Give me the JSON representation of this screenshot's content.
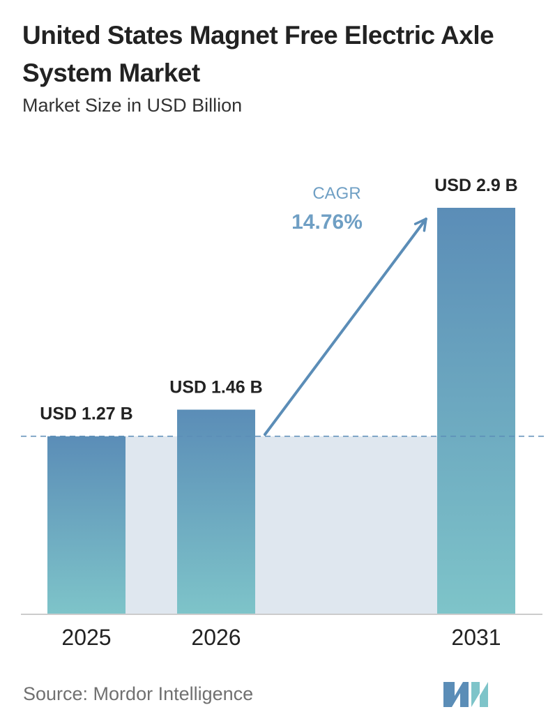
{
  "title": "United States Magnet Free Electric Axle System Market",
  "subtitle": "Market Size in USD Billion",
  "source": "Source: Mordor Intelligence",
  "colors": {
    "bar_top": "#5b8db7",
    "bar_bottom": "#7ec4c9",
    "band": "#dfe7ef",
    "dashed": "#5b8db7",
    "cagr": "#6f9fc4",
    "axis": "#cccccc"
  },
  "chart_data": {
    "type": "bar",
    "categories": [
      "2025",
      "2026",
      "2031"
    ],
    "values": [
      1.27,
      1.46,
      2.9
    ],
    "data_labels": [
      "USD 1.27 B",
      "USD 1.46 B",
      "USD 2.9 B"
    ],
    "cagr_label": "CAGR",
    "cagr_value": "14.76%",
    "ylim": [
      0,
      2.9
    ]
  }
}
